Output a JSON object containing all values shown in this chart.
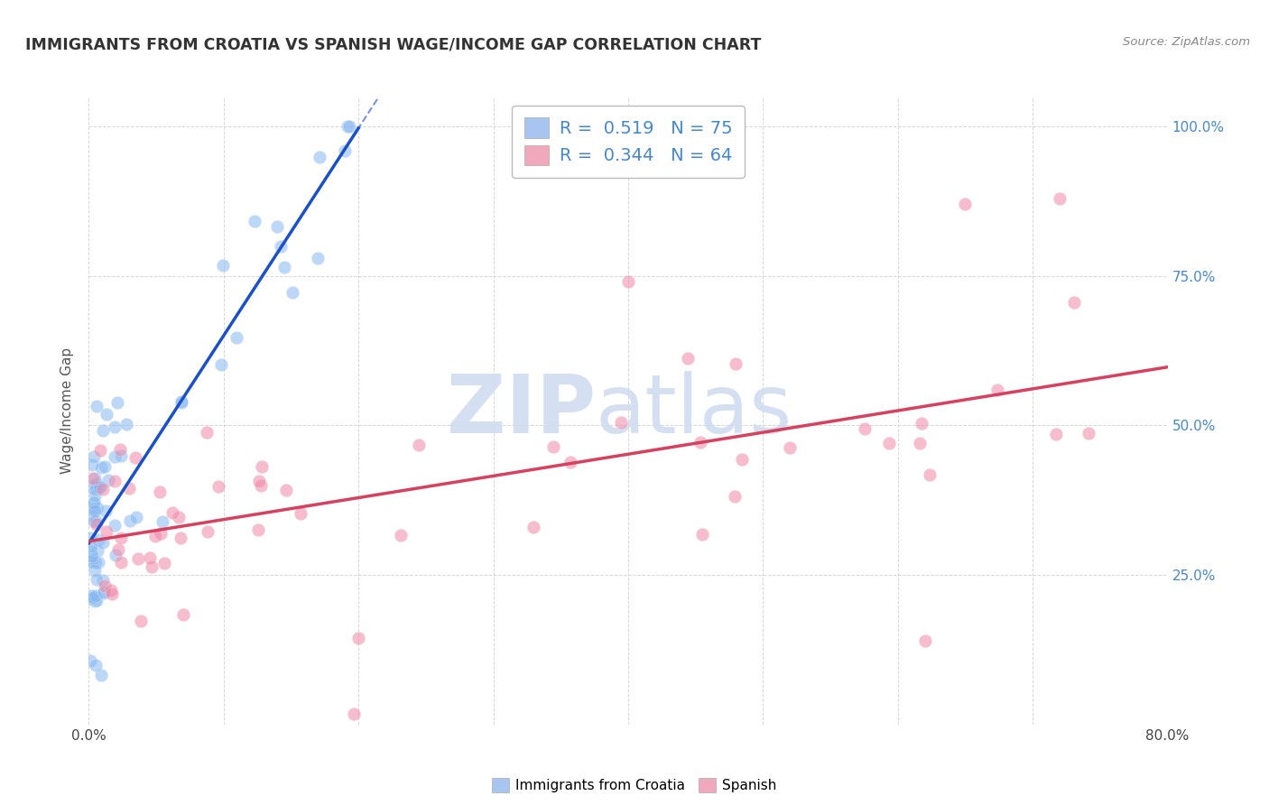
{
  "title": "IMMIGRANTS FROM CROATIA VS SPANISH WAGE/INCOME GAP CORRELATION CHART",
  "source": "Source: ZipAtlas.com",
  "ylabel": "Wage/Income Gap",
  "xmin": 0.0,
  "xmax": 0.8,
  "ymin": 0.0,
  "ymax": 1.05,
  "legend_color1": "#a8c4f0",
  "legend_color2": "#f0a8bc",
  "scatter_color1": "#88b8f0",
  "scatter_color2": "#f088a8",
  "trend_color1": "#1a50c8",
  "trend_color2": "#d84060",
  "watermark_color": "#d0ddf0",
  "grid_color": "#cccccc",
  "right_tick_color": "#4488cc",
  "title_color": "#333333",
  "source_color": "#888888"
}
